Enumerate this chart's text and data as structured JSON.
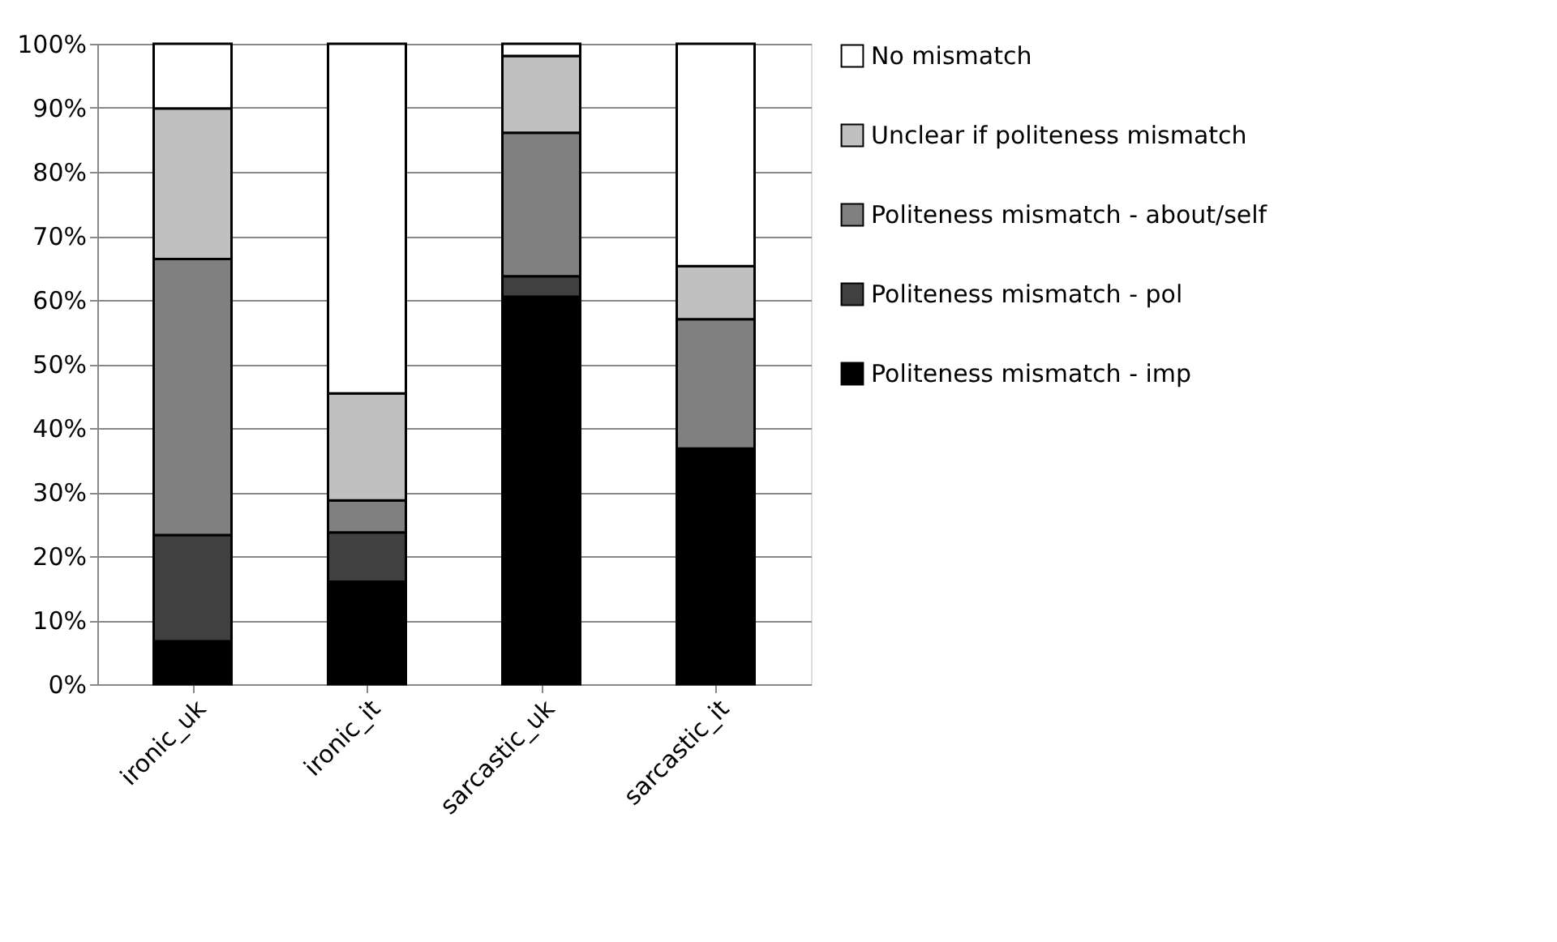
{
  "chart_data": {
    "type": "bar",
    "stacked": true,
    "categories": [
      "ironic_uk",
      "ironic_it",
      "sarcastic_uk",
      "sarcastic_it"
    ],
    "series": [
      {
        "name": "Politeness mismatch - imp",
        "color": "#000000",
        "values": [
          6.7,
          16.0,
          60.5,
          36.8
        ]
      },
      {
        "name": "Politeness mismatch - pol",
        "color": "#404040",
        "values": [
          16.6,
          7.7,
          3.2,
          0
        ]
      },
      {
        "name": "Politeness mismatch - about/self",
        "color": "#808080",
        "values": [
          43.1,
          5.0,
          22.4,
          20.2
        ]
      },
      {
        "name": "Unclear if politeness mismatch",
        "color": "#c0c0c0",
        "values": [
          23.5,
          16.7,
          12.0,
          8.3
        ]
      },
      {
        "name": "No mismatch",
        "color": "#ffffff",
        "values": [
          10.1,
          54.6,
          1.9,
          34.7
        ]
      }
    ],
    "ylim": [
      0,
      100
    ],
    "yticks": [
      {
        "value": 0,
        "label": "0%"
      },
      {
        "value": 10,
        "label": "10%"
      },
      {
        "value": 20,
        "label": "20%"
      },
      {
        "value": 30,
        "label": "30%"
      },
      {
        "value": 40,
        "label": "40%"
      },
      {
        "value": 50,
        "label": "50%"
      },
      {
        "value": 60,
        "label": "60%"
      },
      {
        "value": 70,
        "label": "70%"
      },
      {
        "value": 80,
        "label": "80%"
      },
      {
        "value": 90,
        "label": "90%"
      },
      {
        "value": 100,
        "label": "100%"
      }
    ],
    "grid": "y",
    "legend": "right"
  }
}
